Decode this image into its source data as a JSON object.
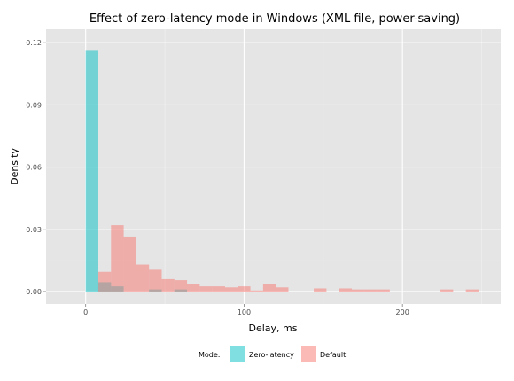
{
  "chart_data": {
    "type": "bar",
    "title": "Effect of zero-latency mode in Windows (XML file, power-saving)",
    "xlabel": "Delay, ms",
    "ylabel": "Density",
    "xlim": [
      -25,
      262
    ],
    "ylim": [
      -0.006,
      0.1265
    ],
    "x_ticks": [
      0,
      100,
      200
    ],
    "x_tick_labels": [
      "0",
      "100",
      "200"
    ],
    "y_ticks": [
      0,
      0.03,
      0.06,
      0.09,
      0.12
    ],
    "y_tick_labels": [
      "0.00",
      "0.03",
      "0.06",
      "0.09",
      "0.12"
    ],
    "grid": true,
    "bin_width": 8,
    "legend": {
      "title": "Mode:",
      "position": "bottom"
    },
    "series": [
      {
        "name": "Zero-latency",
        "color": "#00BFC4",
        "bins": [
          {
            "x0": 0,
            "x1": 8,
            "y": 0.1165
          },
          {
            "x0": 8,
            "x1": 16,
            "y": 0.0045
          },
          {
            "x0": 16,
            "x1": 24,
            "y": 0.0025
          },
          {
            "x0": 40,
            "x1": 48,
            "y": 0.001
          },
          {
            "x0": 56,
            "x1": 64,
            "y": 0.001
          }
        ]
      },
      {
        "name": "Default",
        "color": "#F8766D",
        "bins": [
          {
            "x0": 8,
            "x1": 16,
            "y": 0.0095
          },
          {
            "x0": 16,
            "x1": 24,
            "y": 0.032
          },
          {
            "x0": 24,
            "x1": 32,
            "y": 0.0265
          },
          {
            "x0": 32,
            "x1": 40,
            "y": 0.013
          },
          {
            "x0": 40,
            "x1": 48,
            "y": 0.0105
          },
          {
            "x0": 48,
            "x1": 56,
            "y": 0.006
          },
          {
            "x0": 56,
            "x1": 64,
            "y": 0.0055
          },
          {
            "x0": 64,
            "x1": 72,
            "y": 0.0035
          },
          {
            "x0": 72,
            "x1": 80,
            "y": 0.0025
          },
          {
            "x0": 80,
            "x1": 88,
            "y": 0.0025
          },
          {
            "x0": 88,
            "x1": 96,
            "y": 0.002
          },
          {
            "x0": 96,
            "x1": 104,
            "y": 0.0025
          },
          {
            "x0": 104,
            "x1": 112,
            "y": 0.0005
          },
          {
            "x0": 112,
            "x1": 120,
            "y": 0.0035
          },
          {
            "x0": 120,
            "x1": 128,
            "y": 0.002
          },
          {
            "x0": 144,
            "x1": 152,
            "y": 0.0015
          },
          {
            "x0": 160,
            "x1": 168,
            "y": 0.0015
          },
          {
            "x0": 168,
            "x1": 176,
            "y": 0.001
          },
          {
            "x0": 176,
            "x1": 184,
            "y": 0.001
          },
          {
            "x0": 184,
            "x1": 192,
            "y": 0.001
          },
          {
            "x0": 224,
            "x1": 232,
            "y": 0.001
          },
          {
            "x0": 240,
            "x1": 248,
            "y": 0.001
          }
        ]
      }
    ]
  }
}
